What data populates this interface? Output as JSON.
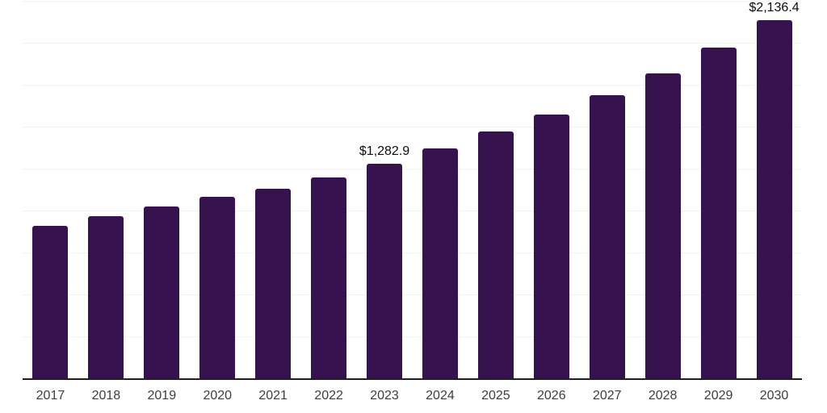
{
  "chart_data": {
    "type": "bar",
    "title": "",
    "xlabel": "",
    "ylabel": "",
    "categories": [
      "2017",
      "2018",
      "2019",
      "2020",
      "2021",
      "2022",
      "2023",
      "2024",
      "2025",
      "2026",
      "2027",
      "2028",
      "2029",
      "2030"
    ],
    "values": [
      914,
      968,
      1026,
      1085,
      1133,
      1202,
      1282.9,
      1375,
      1474,
      1574,
      1690,
      1821,
      1972,
      2136.4
    ],
    "value_labels": [
      "",
      "",
      "",
      "",
      "",
      "",
      "$1,282.9",
      "",
      "",
      "",
      "",
      "",
      "",
      "$2,136.4"
    ],
    "ylim": [
      0,
      2250
    ],
    "gridline_step": 250,
    "grid": true,
    "legend_position": "none",
    "y_axis_tick_labels_visible": false,
    "bar_color": "#36124e",
    "axis_line_color": "#1f1f1f",
    "gridline_color": "#f2f2f2",
    "x_label_color": "#3d3d3d",
    "value_label_color": "#0d0d0d",
    "background_color": "#ffffff"
  }
}
